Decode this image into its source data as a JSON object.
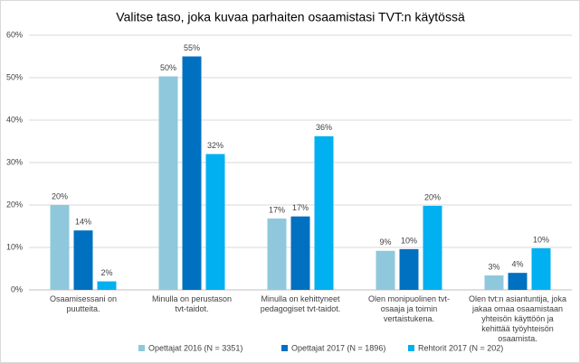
{
  "chart_data": {
    "type": "bar",
    "title": "Valitse taso, joka kuvaa parhaiten osaamistasi TVT:n käytössä",
    "categories": [
      "Osaamisessani on puutteita.",
      "Minulla on perustason tvt-taidot.",
      "Minulla on kehittyneet pedagogiset tvt-taidot.",
      "Olen monipuolinen tvt-osaaja ja toimin vertaistukena.",
      "Olen tvt:n asiantuntija, joka jakaa omaa osaamistaan yhteisön käyttöön ja kehittää työyhteisön osaamista."
    ],
    "series": [
      {
        "name": "Opettajat 2016 (N = 3351)",
        "color": "#8fc8dc",
        "values": [
          20,
          50.3,
          16.8,
          9.2,
          3.4
        ],
        "value_labels": [
          "20%",
          "50%",
          "17%",
          "9%",
          "3%"
        ]
      },
      {
        "name": "Opettajat 2017 (N = 1896)",
        "color": "#0070c0",
        "values": [
          14,
          55,
          17.3,
          9.6,
          4
        ],
        "value_labels": [
          "14%",
          "55%",
          "17%",
          "10%",
          "4%"
        ]
      },
      {
        "name": "Rehtorit 2017 (N = 202)",
        "color": "#00b0f0",
        "values": [
          2,
          32,
          36.2,
          19.8,
          9.8
        ],
        "value_labels": [
          "2%",
          "32%",
          "36%",
          "20%",
          "10%"
        ]
      }
    ],
    "ylim": [
      0,
      60
    ],
    "yticks": [
      {
        "value": 0,
        "label": "0%"
      },
      {
        "value": 10,
        "label": "10%"
      },
      {
        "value": 20,
        "label": "20%"
      },
      {
        "value": 30,
        "label": "30%"
      },
      {
        "value": 40,
        "label": "40%"
      },
      {
        "value": 50,
        "label": "50%"
      },
      {
        "value": 60,
        "label": "60%"
      }
    ],
    "grid": true,
    "legend": "bottom"
  }
}
